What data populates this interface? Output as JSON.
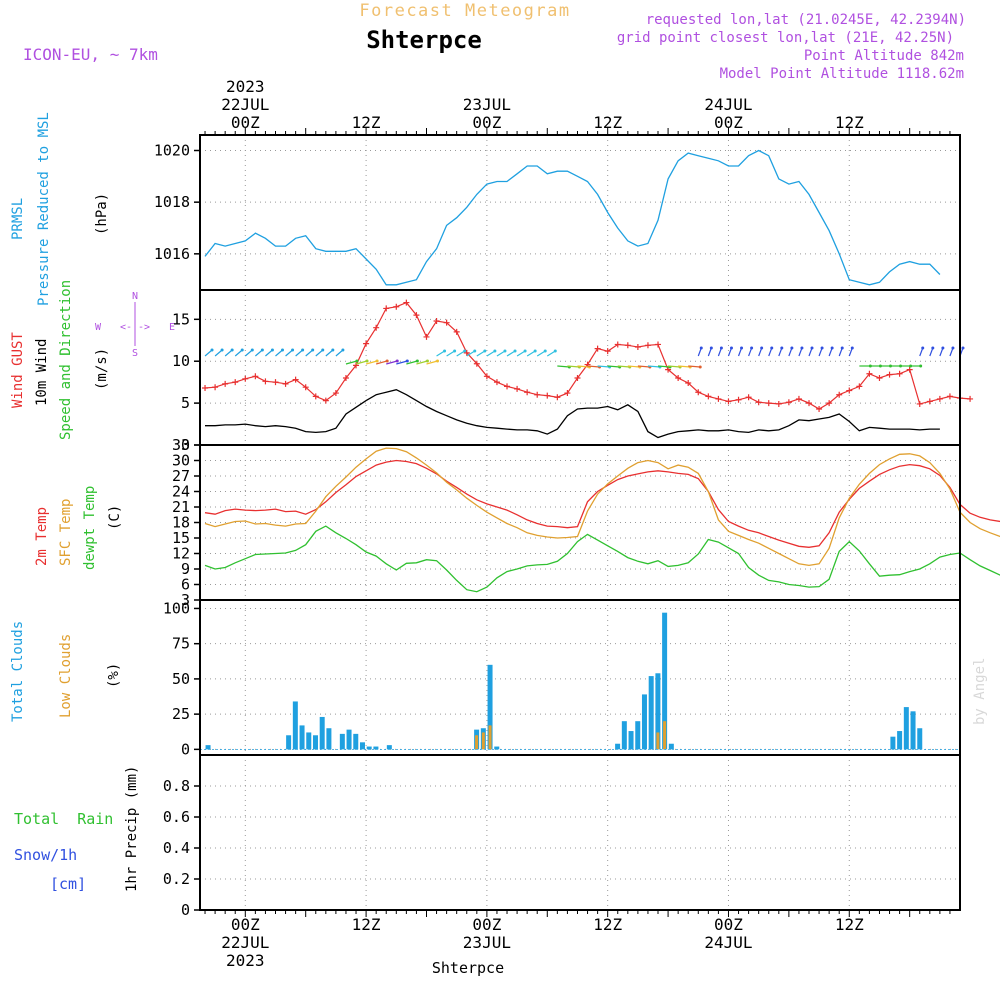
{
  "header": {
    "meteogram_title": "Forecast Meteogram",
    "location": "Shterpce",
    "model": "ICON-EU, ~ 7km",
    "requested": "requested lon,lat (21.0245E, 42.2394N)",
    "gridpoint": "grid point closest lon,lat (21E, 42.25N)",
    "point_altitude": "Point Altitude 842m",
    "model_altitude": "Model Point Altitude 1118.62m",
    "watermark": "by Angel",
    "footer_location": "Shterpce"
  },
  "time_axis": {
    "top_labels": [
      {
        "line1": "2023",
        "line2": "22JUL",
        "line3": "00Z"
      },
      {
        "line1": "",
        "line2": "",
        "line3": "12Z"
      },
      {
        "line1": "",
        "line2": "23JUL",
        "line3": "00Z"
      },
      {
        "line1": "",
        "line2": "",
        "line3": "12Z"
      },
      {
        "line1": "",
        "line2": "24JUL",
        "line3": "00Z"
      },
      {
        "line1": "",
        "line2": "",
        "line3": "12Z"
      }
    ],
    "bottom_labels": [
      {
        "line1": "00Z",
        "line2": "22JUL",
        "line3": "2023"
      },
      {
        "line1": "12Z",
        "line2": "",
        "line3": ""
      },
      {
        "line1": "00Z",
        "line2": "23JUL",
        "line3": ""
      },
      {
        "line1": "12Z",
        "line2": "",
        "line3": ""
      },
      {
        "line1": "00Z",
        "line2": "24JUL",
        "line3": ""
      },
      {
        "line1": "12Z",
        "line2": "",
        "line3": ""
      }
    ]
  },
  "panels": {
    "pressure": {
      "name_line1": "PRMSL",
      "name_line2": "Pressure Reduced to MSL",
      "unit": "(hPa)"
    },
    "wind": {
      "gust_label": "Wind GUST",
      "wind_label": "10m Wind",
      "dir_label": "Speed and Direction",
      "unit": "(m/s)",
      "compass_n": "N",
      "compass_s": "S",
      "compass_w": "W",
      "compass_e": "E",
      "compass_arrows": "<-|->"
    },
    "temp": {
      "t2m_label": "2m Temp",
      "sfc_label": "SFC Temp",
      "dew_label": "dewpt Temp",
      "unit": "(C)"
    },
    "clouds": {
      "total_label": "Total Clouds",
      "low_label": "Low Clouds",
      "unit": "(%)"
    },
    "precip": {
      "rain_label": "Total  Rain",
      "snow_label": "Snow/1h",
      "snow_unit": "[cm]",
      "unit": "1hr Precip (mm)"
    }
  },
  "colors": {
    "pressure": "#1fa0e0",
    "gust": "#e83030",
    "wind": "#000000",
    "t2m": "#e83030",
    "sfc": "#e0a030",
    "dew": "#30c030",
    "total_clouds": "#1fa0e0",
    "low_clouds": "#e0a030",
    "rain": "#30c030",
    "snow": "#3050e0",
    "meta": "#b050e0"
  },
  "chart_data": [
    {
      "type": "line",
      "title": "PRMSL Pressure Reduced to MSL",
      "ylabel": "(hPa)",
      "ylim": [
        1014.6,
        1020.6
      ],
      "yticks": [
        1016,
        1018,
        1020
      ],
      "x_hours_start": -4,
      "x_hours_end": 71,
      "series": [
        {
          "name": "PRMSL",
          "values": [
            1015.9,
            1016.4,
            1016.3,
            1016.4,
            1016.5,
            1016.8,
            1016.6,
            1016.3,
            1016.3,
            1016.6,
            1016.7,
            1016.2,
            1016.1,
            1016.1,
            1016.1,
            1016.2,
            1015.8,
            1015.4,
            1014.8,
            1014.8,
            1014.9,
            1015.0,
            1015.7,
            1016.2,
            1017.1,
            1017.4,
            1017.8,
            1018.3,
            1018.7,
            1018.8,
            1018.8,
            1019.1,
            1019.4,
            1019.4,
            1019.1,
            1019.2,
            1019.2,
            1019.0,
            1018.8,
            1018.3,
            1017.6,
            1017.0,
            1016.5,
            1016.3,
            1016.4,
            1017.3,
            1018.9,
            1019.6,
            1019.9,
            1019.8,
            1019.7,
            1019.6,
            1019.4,
            1019.4,
            1019.8,
            1020.0,
            1019.8,
            1018.9,
            1018.7,
            1018.8,
            1018.3,
            1017.6,
            1016.9,
            1016.0,
            1015.0,
            1014.9,
            1014.8,
            1014.9,
            1015.3,
            1015.6,
            1015.7,
            1015.6,
            1015.6,
            1015.2
          ]
        }
      ]
    },
    {
      "type": "line",
      "title": "Wind GUST / 10m Wind Speed and Direction",
      "ylabel": "(m/s)",
      "ylim": [
        0,
        18.5
      ],
      "yticks": [
        0,
        5,
        10,
        15
      ],
      "x_hours_start": -4,
      "x_hours_end": 71,
      "series": [
        {
          "name": "Wind GUST",
          "values": [
            6.8,
            6.9,
            7.3,
            7.5,
            7.9,
            8.2,
            7.6,
            7.5,
            7.3,
            7.8,
            6.9,
            5.8,
            5.3,
            6.2,
            8.0,
            9.5,
            12.1,
            14.0,
            16.3,
            16.5,
            17.0,
            15.5,
            12.9,
            14.8,
            14.6,
            13.5,
            11.0,
            9.7,
            8.2,
            7.5,
            7.0,
            6.7,
            6.3,
            6.0,
            5.9,
            5.7,
            6.2,
            8.0,
            9.6,
            11.5,
            11.2,
            12.0,
            11.9,
            11.7,
            11.9,
            12.0,
            9.0,
            8.0,
            7.4,
            6.3,
            5.8,
            5.5,
            5.2,
            5.4,
            5.7,
            5.1,
            5.0,
            4.9,
            5.1,
            5.5,
            5.0,
            4.3,
            5.0,
            6.0,
            6.5,
            7.0,
            8.5,
            8.0,
            8.4,
            8.5,
            9.0,
            4.9,
            5.2,
            5.5,
            5.8,
            5.6,
            5.5
          ]
        },
        {
          "name": "10m Wind",
          "values": [
            2.3,
            2.3,
            2.4,
            2.4,
            2.5,
            2.3,
            2.2,
            2.3,
            2.2,
            2.0,
            1.6,
            1.5,
            1.6,
            2.0,
            3.7,
            4.5,
            5.3,
            6.0,
            6.3,
            6.6,
            6.0,
            5.3,
            4.6,
            4.0,
            3.5,
            3.0,
            2.6,
            2.3,
            2.1,
            2.0,
            1.9,
            1.8,
            1.8,
            1.7,
            1.3,
            1.9,
            3.5,
            4.3,
            4.4,
            4.4,
            4.6,
            4.2,
            4.8,
            4.0,
            1.6,
            0.9,
            1.3,
            1.6,
            1.7,
            1.8,
            1.7,
            1.7,
            1.8,
            1.6,
            1.5,
            1.8,
            1.7,
            1.8,
            2.3,
            3.0,
            2.9,
            3.1,
            3.3,
            3.7,
            2.8,
            1.7,
            2.1,
            2.0,
            1.9,
            1.9,
            1.9,
            1.8,
            1.9,
            1.9
          ]
        }
      ]
    },
    {
      "type": "line",
      "title": "2m Temp / SFC Temp / dewpt Temp",
      "ylabel": "(C)",
      "ylim": [
        3,
        33
      ],
      "yticks": [
        3,
        6,
        9,
        12,
        15,
        18,
        21,
        24,
        27,
        30,
        33
      ],
      "x_hours_start": -4,
      "x_hours_end": 71,
      "series": [
        {
          "name": "2m Temp",
          "values": [
            19.9,
            19.6,
            20.3,
            20.6,
            20.4,
            20.3,
            20.4,
            20.6,
            20.1,
            20.2,
            19.6,
            20.5,
            22.0,
            23.8,
            25.3,
            26.9,
            28.0,
            29.1,
            29.7,
            30.0,
            29.8,
            29.4,
            28.5,
            27.4,
            26.0,
            24.8,
            23.5,
            22.4,
            21.6,
            21.0,
            20.4,
            19.5,
            18.5,
            17.8,
            17.3,
            17.2,
            17.0,
            17.2,
            22.0,
            24.0,
            25.2,
            26.3,
            27.0,
            27.4,
            27.8,
            28.0,
            27.8,
            27.5,
            27.3,
            26.5,
            24.0,
            20.5,
            18.2,
            17.3,
            16.5,
            16.0,
            15.3,
            14.6,
            14.0,
            13.4,
            13.2,
            13.5,
            16.0,
            20.0,
            22.5,
            24.6,
            26.0,
            27.3,
            28.2,
            28.9,
            29.2,
            29.0,
            28.4,
            27.1,
            24.8,
            21.5,
            19.8,
            19.0,
            18.5,
            18.2,
            17.9
          ]
        },
        {
          "name": "SFC Temp",
          "values": [
            17.8,
            17.2,
            17.7,
            18.2,
            18.3,
            17.7,
            17.8,
            17.5,
            17.3,
            17.7,
            17.8,
            20.2,
            23.0,
            25.0,
            26.8,
            28.7,
            30.3,
            31.8,
            32.4,
            32.3,
            31.7,
            30.5,
            29.1,
            27.6,
            25.8,
            24.3,
            22.7,
            21.3,
            20.0,
            18.9,
            17.8,
            17.0,
            16.0,
            15.5,
            15.2,
            15.0,
            15.1,
            15.3,
            20.2,
            23.5,
            25.5,
            27.0,
            28.5,
            29.6,
            30.0,
            29.6,
            28.4,
            29.1,
            28.7,
            27.5,
            24.0,
            18.5,
            16.3,
            15.5,
            14.7,
            14.0,
            13.0,
            12.0,
            11.0,
            10.0,
            9.7,
            10.0,
            13.0,
            18.9,
            22.7,
            25.4,
            27.5,
            29.2,
            30.3,
            31.2,
            31.3,
            30.9,
            29.6,
            27.5,
            24.5,
            20.0,
            18.0,
            16.8,
            16.0,
            15.3,
            14.9
          ]
        },
        {
          "name": "dewpt Temp",
          "values": [
            9.7,
            9.0,
            9.3,
            10.2,
            11.0,
            11.8,
            11.9,
            12.0,
            12.1,
            12.6,
            13.7,
            16.3,
            17.3,
            16.0,
            14.9,
            13.7,
            12.3,
            11.5,
            10.0,
            8.8,
            10.1,
            10.2,
            10.8,
            10.6,
            8.8,
            6.8,
            5.0,
            4.6,
            5.5,
            7.3,
            8.5,
            9.0,
            9.6,
            9.8,
            9.9,
            10.5,
            12.0,
            14.3,
            15.7,
            14.6,
            13.5,
            12.4,
            11.2,
            10.5,
            10.0,
            10.6,
            9.5,
            9.7,
            10.2,
            11.9,
            14.7,
            14.2,
            13.1,
            12.0,
            9.3,
            7.8,
            6.8,
            6.5,
            6.0,
            5.8,
            5.5,
            5.6,
            7.0,
            12.4,
            14.3,
            12.5,
            10.0,
            7.6,
            7.8,
            7.9,
            8.5,
            9.0,
            10.0,
            11.3,
            11.8,
            12.1,
            10.8,
            9.6,
            8.7,
            7.8,
            7.0
          ]
        }
      ]
    },
    {
      "type": "bar",
      "title": "Total Clouds / Low Clouds",
      "ylabel": "(%)",
      "ylim": [
        -4,
        106
      ],
      "yticks": [
        0,
        25,
        50,
        75,
        100
      ],
      "x_hours_start": -4,
      "series": [
        {
          "name": "Total Clouds",
          "values": [
            3,
            0,
            0,
            0,
            0,
            0,
            0,
            0,
            0,
            0,
            0,
            0,
            10,
            34,
            17,
            12,
            10,
            23,
            15,
            0,
            11,
            14,
            11,
            5,
            2,
            2,
            0,
            3,
            0,
            0,
            0,
            0,
            0,
            0,
            0,
            0,
            0,
            0,
            0,
            0,
            14,
            15,
            60,
            2,
            0,
            0,
            0,
            0,
            0,
            0,
            0,
            0,
            0,
            0,
            0,
            0,
            0,
            0,
            0,
            0,
            0,
            4,
            20,
            13,
            20,
            39,
            52,
            54,
            97,
            4,
            0,
            0,
            0,
            0,
            0,
            0,
            0,
            0,
            0,
            0,
            0,
            0,
            0,
            0,
            0,
            0,
            0,
            0,
            0,
            0,
            0,
            0,
            0,
            0,
            0,
            0,
            0,
            0,
            0,
            0,
            0,
            0,
            9,
            13,
            30,
            27,
            15,
            0,
            0,
            0,
            0,
            0,
            0,
            0,
            0
          ]
        },
        {
          "name": "Low Clouds",
          "values": [
            0,
            0,
            0,
            0,
            0,
            0,
            0,
            0,
            0,
            0,
            0,
            0,
            0,
            0,
            0,
            0,
            0,
            0,
            0,
            0,
            0,
            0,
            0,
            0,
            0,
            0,
            0,
            0,
            0,
            0,
            0,
            0,
            0,
            0,
            0,
            0,
            0,
            0,
            0,
            0,
            10,
            12,
            17,
            0,
            0,
            0,
            0,
            0,
            0,
            0,
            0,
            0,
            0,
            0,
            0,
            0,
            0,
            0,
            0,
            0,
            0,
            0,
            0,
            0,
            0,
            0,
            0,
            12,
            20,
            0,
            0,
            0,
            0,
            0,
            0,
            0,
            0,
            0,
            0,
            0,
            0,
            0,
            0,
            0,
            0,
            0,
            0,
            0,
            0,
            0,
            0,
            0,
            0,
            0,
            0,
            0,
            0,
            0,
            0,
            0,
            0,
            0,
            0,
            0,
            0,
            0,
            0,
            0,
            0,
            0,
            0,
            0,
            0,
            0,
            0
          ]
        }
      ]
    },
    {
      "type": "bar",
      "title": "1hr Precip",
      "ylabel": "1hr Precip (mm)",
      "ylim": [
        0,
        1.0
      ],
      "yticks": [
        0,
        0.2,
        0.4,
        0.6,
        0.8
      ],
      "ytick_labels": [
        "0",
        "0.2",
        "0.4",
        "0.6",
        "0.8"
      ],
      "series": [
        {
          "name": "Total Rain",
          "values": []
        },
        {
          "name": "Snow/1h",
          "values": []
        }
      ]
    }
  ]
}
